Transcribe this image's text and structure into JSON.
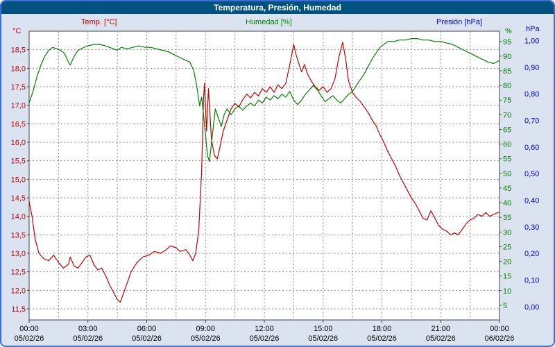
{
  "window": {
    "title": "Temperatura, Presión, Humedad"
  },
  "legend": {
    "temp_label": "Temp. [°C]",
    "humidity_label": "Humedad [%]",
    "pressure_label": "Presión [hPa]"
  },
  "axes": {
    "temp_unit": "°C",
    "humidity_unit": "%",
    "pressure_unit": "hPa"
  },
  "chart_data": {
    "type": "line",
    "title": "Temperatura, Presión, Humedad",
    "grid": "dashed",
    "x_axis": {
      "range_hours": [
        0,
        24
      ],
      "ticks_hours": [
        0,
        3,
        6,
        9,
        12,
        15,
        18,
        21,
        24
      ],
      "tick_labels": [
        "00:00",
        "03:00",
        "06:00",
        "09:00",
        "12:00",
        "15:00",
        "18:00",
        "21:00",
        "00:00"
      ],
      "date_labels": [
        "05/02/26",
        "05/02/26",
        "05/02/26",
        "05/02/26",
        "05/02/26",
        "05/02/26",
        "05/02/26",
        "05/02/26",
        "06/02/26"
      ],
      "gridline_step_hours": 1.5
    },
    "temp_axis": {
      "side": "left",
      "unit": "°C",
      "color": "#c00000",
      "min": 11.2,
      "max": 19.0,
      "ticks": [
        11.5,
        12.0,
        12.5,
        13.0,
        13.5,
        14.0,
        14.5,
        15.0,
        15.5,
        16.0,
        16.5,
        17.0,
        17.5,
        18.0,
        18.5
      ],
      "tick_labels": [
        "11,5",
        "12,0",
        "12,5",
        "13,0",
        "13,5",
        "14,0",
        "14,5",
        "15,0",
        "15,5",
        "16,0",
        "16,5",
        "17,0",
        "17,5",
        "18,0",
        "18,5"
      ]
    },
    "humidity_axis": {
      "side": "right-inner",
      "unit": "%",
      "color": "#008000",
      "min": 0,
      "max": 98.5,
      "ticks": [
        5,
        10,
        15,
        20,
        25,
        30,
        35,
        40,
        45,
        50,
        55,
        60,
        65,
        70,
        75,
        80,
        85,
        90,
        95
      ],
      "tick_labels": [
        "5",
        "10",
        "15",
        "20",
        "25",
        "30",
        "35",
        "40",
        "45",
        "50",
        "55",
        "60",
        "65",
        "70",
        "75",
        "80",
        "85",
        "90",
        "95"
      ]
    },
    "pressure_axis": {
      "side": "right-outer",
      "unit": "hPa",
      "color": "#0000cc",
      "min": -0.05,
      "max": 1.035,
      "ticks": [
        0.0,
        0.1,
        0.2,
        0.3,
        0.4,
        0.5,
        0.6,
        0.7,
        0.8,
        0.9,
        1.0
      ],
      "tick_labels": [
        "0,00",
        "0,10",
        "0,20",
        "0,30",
        "0,40",
        "0,50",
        "0,60",
        "0,70",
        "0,80",
        "0,90",
        "1,00"
      ],
      "note": "no pressure curve visible in plot"
    },
    "series": [
      {
        "name": "Temp. [°C]",
        "axis": "temp",
        "color": "#c00000",
        "points": [
          [
            0,
            14.4
          ],
          [
            0.15,
            14.0
          ],
          [
            0.3,
            13.4
          ],
          [
            0.5,
            13.0
          ],
          [
            0.75,
            12.85
          ],
          [
            1,
            12.8
          ],
          [
            1.25,
            12.95
          ],
          [
            1.5,
            12.75
          ],
          [
            1.75,
            12.6
          ],
          [
            2,
            12.7
          ],
          [
            2.1,
            12.9
          ],
          [
            2.3,
            12.65
          ],
          [
            2.5,
            12.6
          ],
          [
            2.7,
            12.75
          ],
          [
            2.9,
            12.9
          ],
          [
            3.1,
            12.95
          ],
          [
            3.3,
            12.7
          ],
          [
            3.5,
            12.55
          ],
          [
            3.7,
            12.6
          ],
          [
            3.9,
            12.4
          ],
          [
            4.1,
            12.15
          ],
          [
            4.3,
            11.95
          ],
          [
            4.5,
            11.75
          ],
          [
            4.65,
            11.68
          ],
          [
            4.8,
            11.9
          ],
          [
            5,
            12.2
          ],
          [
            5.2,
            12.5
          ],
          [
            5.5,
            12.75
          ],
          [
            5.8,
            12.9
          ],
          [
            6.1,
            12.95
          ],
          [
            6.4,
            13.05
          ],
          [
            6.7,
            13.0
          ],
          [
            7,
            13.1
          ],
          [
            7.2,
            13.2
          ],
          [
            7.5,
            13.15
          ],
          [
            7.7,
            13.05
          ],
          [
            8,
            13.1
          ],
          [
            8.2,
            12.95
          ],
          [
            8.35,
            12.8
          ],
          [
            8.5,
            13.0
          ],
          [
            8.65,
            13.6
          ],
          [
            8.8,
            15.2
          ],
          [
            8.9,
            17.2
          ],
          [
            8.95,
            17.6
          ],
          [
            9.05,
            16.3
          ],
          [
            9.15,
            17.45
          ],
          [
            9.3,
            16.1
          ],
          [
            9.45,
            15.65
          ],
          [
            9.6,
            15.55
          ],
          [
            9.75,
            15.9
          ],
          [
            9.9,
            16.3
          ],
          [
            10.1,
            16.6
          ],
          [
            10.3,
            16.9
          ],
          [
            10.5,
            17.05
          ],
          [
            10.7,
            16.95
          ],
          [
            10.9,
            17.15
          ],
          [
            11.1,
            17.3
          ],
          [
            11.3,
            17.2
          ],
          [
            11.5,
            17.35
          ],
          [
            11.7,
            17.25
          ],
          [
            11.9,
            17.45
          ],
          [
            12.1,
            17.35
          ],
          [
            12.3,
            17.5
          ],
          [
            12.5,
            17.35
          ],
          [
            12.7,
            17.55
          ],
          [
            12.9,
            17.45
          ],
          [
            13.1,
            17.6
          ],
          [
            13.3,
            18.1
          ],
          [
            13.5,
            18.65
          ],
          [
            13.6,
            18.4
          ],
          [
            13.75,
            18.15
          ],
          [
            13.9,
            17.9
          ],
          [
            14.05,
            18.1
          ],
          [
            14.2,
            17.85
          ],
          [
            14.4,
            17.65
          ],
          [
            14.6,
            17.5
          ],
          [
            14.8,
            17.4
          ],
          [
            15,
            17.5
          ],
          [
            15.2,
            17.35
          ],
          [
            15.4,
            17.45
          ],
          [
            15.6,
            17.7
          ],
          [
            15.8,
            18.3
          ],
          [
            16,
            18.7
          ],
          [
            16.15,
            18.25
          ],
          [
            16.3,
            17.65
          ],
          [
            16.5,
            17.35
          ],
          [
            16.7,
            17.2
          ],
          [
            16.9,
            17.1
          ],
          [
            17.1,
            16.95
          ],
          [
            17.3,
            16.8
          ],
          [
            17.5,
            16.6
          ],
          [
            17.7,
            16.45
          ],
          [
            17.9,
            16.2
          ],
          [
            18.1,
            16.0
          ],
          [
            18.3,
            15.75
          ],
          [
            18.5,
            15.55
          ],
          [
            18.7,
            15.35
          ],
          [
            18.9,
            15.1
          ],
          [
            19.1,
            14.9
          ],
          [
            19.3,
            14.7
          ],
          [
            19.5,
            14.5
          ],
          [
            19.7,
            14.35
          ],
          [
            19.9,
            14.15
          ],
          [
            20.1,
            13.95
          ],
          [
            20.3,
            13.9
          ],
          [
            20.5,
            14.15
          ],
          [
            20.7,
            13.95
          ],
          [
            20.9,
            13.75
          ],
          [
            21.1,
            13.65
          ],
          [
            21.3,
            13.6
          ],
          [
            21.5,
            13.5
          ],
          [
            21.7,
            13.55
          ],
          [
            21.9,
            13.5
          ],
          [
            22.1,
            13.65
          ],
          [
            22.3,
            13.8
          ],
          [
            22.5,
            13.9
          ],
          [
            22.7,
            13.95
          ],
          [
            22.9,
            14.05
          ],
          [
            23.1,
            14.0
          ],
          [
            23.3,
            14.1
          ],
          [
            23.5,
            14.0
          ],
          [
            23.7,
            14.05
          ],
          [
            23.9,
            14.1
          ],
          [
            24,
            14.1
          ]
        ]
      },
      {
        "name": "Humedad [%]",
        "axis": "humidity",
        "color": "#008000",
        "points": [
          [
            0,
            74
          ],
          [
            0.2,
            78
          ],
          [
            0.4,
            83
          ],
          [
            0.6,
            87
          ],
          [
            0.8,
            90
          ],
          [
            1,
            92
          ],
          [
            1.2,
            93
          ],
          [
            1.4,
            92.5
          ],
          [
            1.6,
            92
          ],
          [
            1.8,
            91
          ],
          [
            2,
            88
          ],
          [
            2.1,
            87
          ],
          [
            2.3,
            90
          ],
          [
            2.5,
            92
          ],
          [
            2.8,
            93
          ],
          [
            3,
            93.5
          ],
          [
            3.3,
            94
          ],
          [
            3.6,
            94
          ],
          [
            3.9,
            93.5
          ],
          [
            4.1,
            93
          ],
          [
            4.3,
            92.5
          ],
          [
            4.5,
            92
          ],
          [
            4.7,
            93
          ],
          [
            5,
            92.5
          ],
          [
            5.3,
            93
          ],
          [
            5.6,
            93.5
          ],
          [
            5.9,
            93
          ],
          [
            6.2,
            93
          ],
          [
            6.5,
            92.5
          ],
          [
            6.8,
            92
          ],
          [
            7.1,
            91.5
          ],
          [
            7.4,
            90.5
          ],
          [
            7.7,
            89.5
          ],
          [
            8,
            88.5
          ],
          [
            8.2,
            88
          ],
          [
            8.4,
            85
          ],
          [
            8.55,
            80
          ],
          [
            8.7,
            73
          ],
          [
            8.8,
            76
          ],
          [
            8.9,
            70
          ],
          [
            9,
            63
          ],
          [
            9.1,
            56
          ],
          [
            9.2,
            54
          ],
          [
            9.35,
            63
          ],
          [
            9.5,
            72
          ],
          [
            9.65,
            69
          ],
          [
            9.8,
            66
          ],
          [
            9.95,
            70
          ],
          [
            10.1,
            72
          ],
          [
            10.3,
            70
          ],
          [
            10.5,
            72
          ],
          [
            10.7,
            73
          ],
          [
            10.9,
            71.5
          ],
          [
            11.1,
            73
          ],
          [
            11.3,
            74
          ],
          [
            11.5,
            73
          ],
          [
            11.7,
            75
          ],
          [
            11.9,
            74
          ],
          [
            12.1,
            76
          ],
          [
            12.3,
            75
          ],
          [
            12.5,
            76.5
          ],
          [
            12.7,
            75.5
          ],
          [
            12.9,
            77
          ],
          [
            13.1,
            76
          ],
          [
            13.3,
            78
          ],
          [
            13.5,
            75
          ],
          [
            13.7,
            73.5
          ],
          [
            13.9,
            75
          ],
          [
            14.1,
            77
          ],
          [
            14.3,
            78.5
          ],
          [
            14.5,
            80
          ],
          [
            14.7,
            78.5
          ],
          [
            14.9,
            76.5
          ],
          [
            15.1,
            74.5
          ],
          [
            15.3,
            75.5
          ],
          [
            15.5,
            76.5
          ],
          [
            15.7,
            75
          ],
          [
            15.9,
            74
          ],
          [
            16.1,
            75.5
          ],
          [
            16.3,
            77
          ],
          [
            16.5,
            78
          ],
          [
            16.7,
            80
          ],
          [
            16.9,
            82
          ],
          [
            17.1,
            84
          ],
          [
            17.3,
            86.5
          ],
          [
            17.5,
            89
          ],
          [
            17.7,
            91
          ],
          [
            17.9,
            93
          ],
          [
            18.1,
            94
          ],
          [
            18.3,
            95
          ],
          [
            18.6,
            95
          ],
          [
            18.9,
            95.5
          ],
          [
            19.2,
            95.5
          ],
          [
            19.5,
            96
          ],
          [
            19.8,
            96
          ],
          [
            20.1,
            95.5
          ],
          [
            20.4,
            95.5
          ],
          [
            20.7,
            95
          ],
          [
            21,
            95
          ],
          [
            21.3,
            94.5
          ],
          [
            21.6,
            94
          ],
          [
            21.9,
            93
          ],
          [
            22.2,
            92
          ],
          [
            22.5,
            91
          ],
          [
            22.8,
            90
          ],
          [
            23.1,
            89
          ],
          [
            23.4,
            88
          ],
          [
            23.7,
            87.5
          ],
          [
            24,
            88.5
          ]
        ]
      }
    ]
  }
}
